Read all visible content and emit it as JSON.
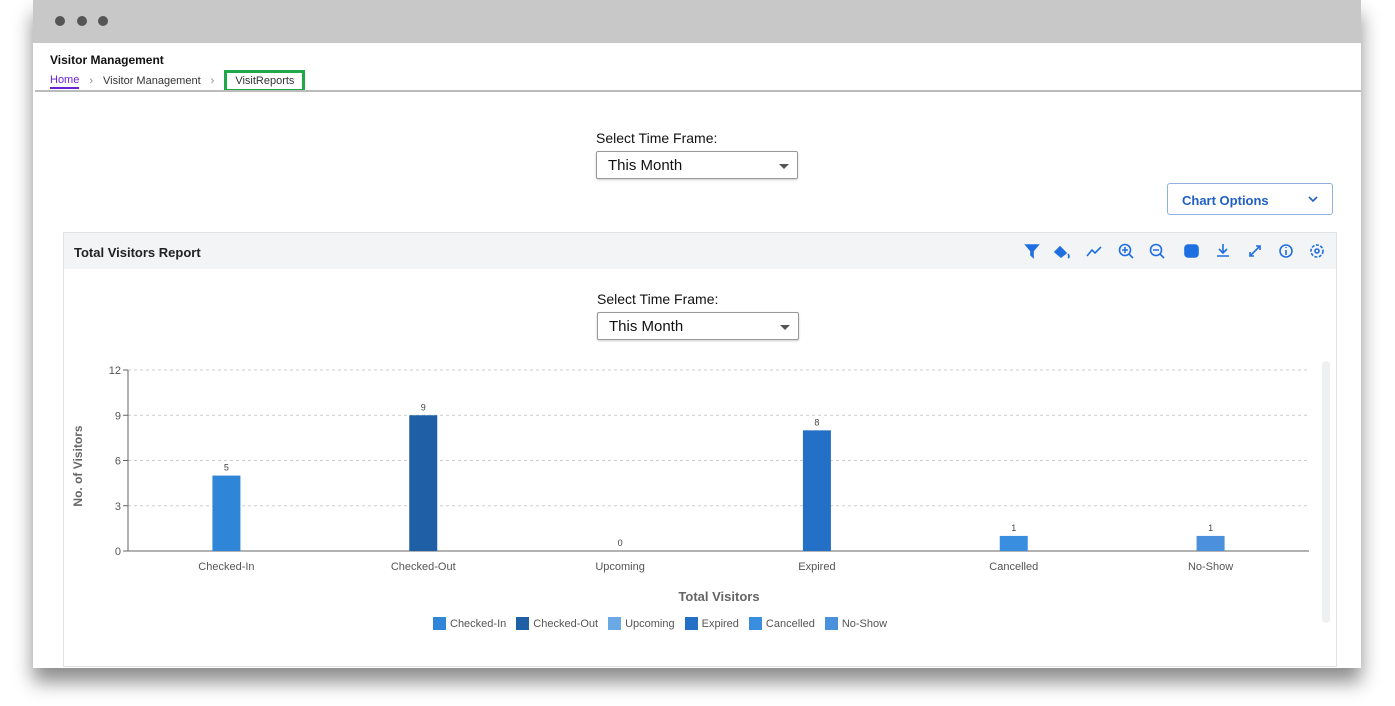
{
  "header": {
    "title": "Visitor Management",
    "breadcrumb": [
      "Home",
      "Visitor Management",
      "VisitReports"
    ]
  },
  "time_frame": {
    "label": "Select Time Frame:",
    "value": "This Month"
  },
  "chart_options": "Chart Options",
  "panel": {
    "title": "Total Visitors Report",
    "time_frame": {
      "label": "Select Time Frame:",
      "value": "This Month"
    }
  },
  "chart_data": {
    "type": "bar",
    "categories": [
      "Checked-In",
      "Checked-Out",
      "Upcoming",
      "Expired",
      "Cancelled",
      "No-Show"
    ],
    "values": [
      5,
      9,
      0,
      8,
      1,
      1
    ],
    "colors": [
      "#2f86d8",
      "#1f5fa6",
      "#6aa8e6",
      "#2370c6",
      "#3a8ee0",
      "#4a90dc"
    ],
    "x_label": "Total Visitors",
    "y_label": "No. of Visitors",
    "ylim": [
      0,
      12
    ],
    "yticks": [
      0,
      3,
      6,
      9,
      12
    ],
    "grid": true
  }
}
